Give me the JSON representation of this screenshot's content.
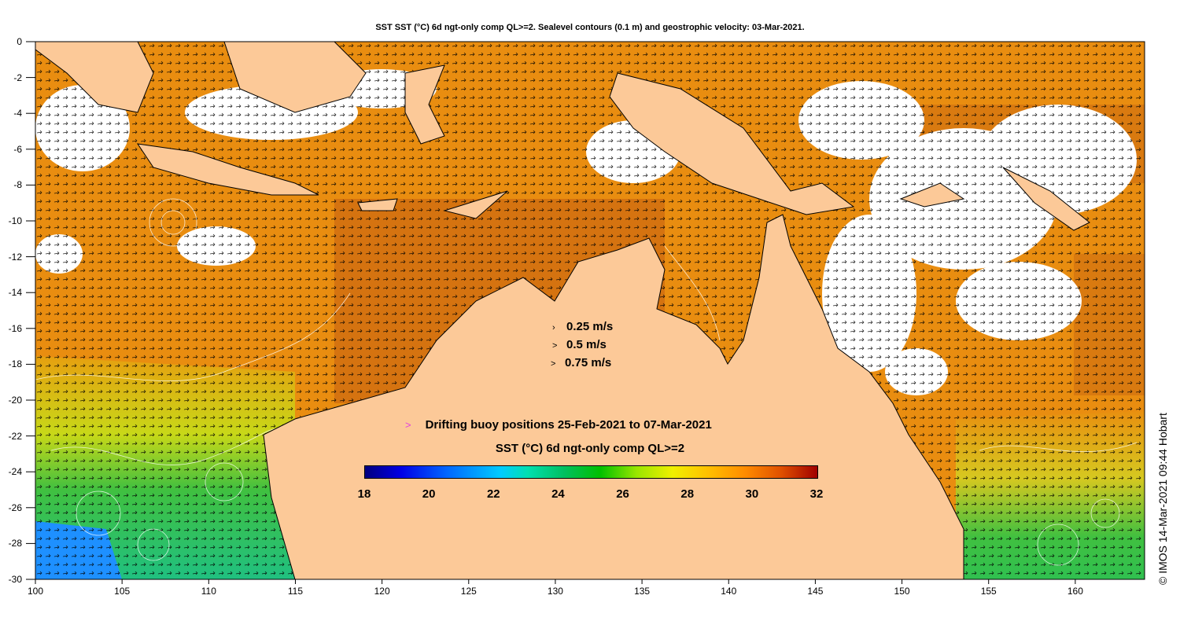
{
  "title": "SST SST (°C) 6d ngt-only comp QL>=2. Sealevel contours (0.1 m) and geostrophic velocity: 03-Mar-2021.",
  "axes": {
    "y_ticks": [
      "0",
      "-2",
      "-4",
      "-6",
      "-8",
      "-10",
      "-12",
      "-14",
      "-16",
      "-18",
      "-20",
      "-22",
      "-24",
      "-26",
      "-28",
      "-30"
    ],
    "x_ticks": [
      "100",
      "105",
      "110",
      "115",
      "120",
      "125",
      "130",
      "135",
      "140",
      "145",
      "150",
      "155",
      "160"
    ],
    "lat_range": [
      -30,
      0
    ],
    "lon_range": [
      100,
      164
    ]
  },
  "velocity_legend": [
    {
      "value": "0.25 m/s"
    },
    {
      "value": "0.5 m/s"
    },
    {
      "value": "0.75 m/s"
    }
  ],
  "buoy_legend": {
    "marker": ">",
    "text": "Drifting buoy positions 25-Feb-2021 to 07-Mar-2021",
    "color": "#e040e0"
  },
  "colorbar": {
    "title": "SST (°C) 6d ngt-only comp QL>=2",
    "ticks": [
      "18",
      "20",
      "22",
      "24",
      "26",
      "28",
      "30",
      "32"
    ],
    "range": [
      18,
      32
    ]
  },
  "credit": "© IMOS 14-Mar-2021 09:44 Hobart",
  "colors": {
    "land": "#fcc998",
    "warm": "#e98d10",
    "hot": "#c45a10",
    "cool_green": "#3cc030",
    "cold_blue": "#1e7fff"
  }
}
